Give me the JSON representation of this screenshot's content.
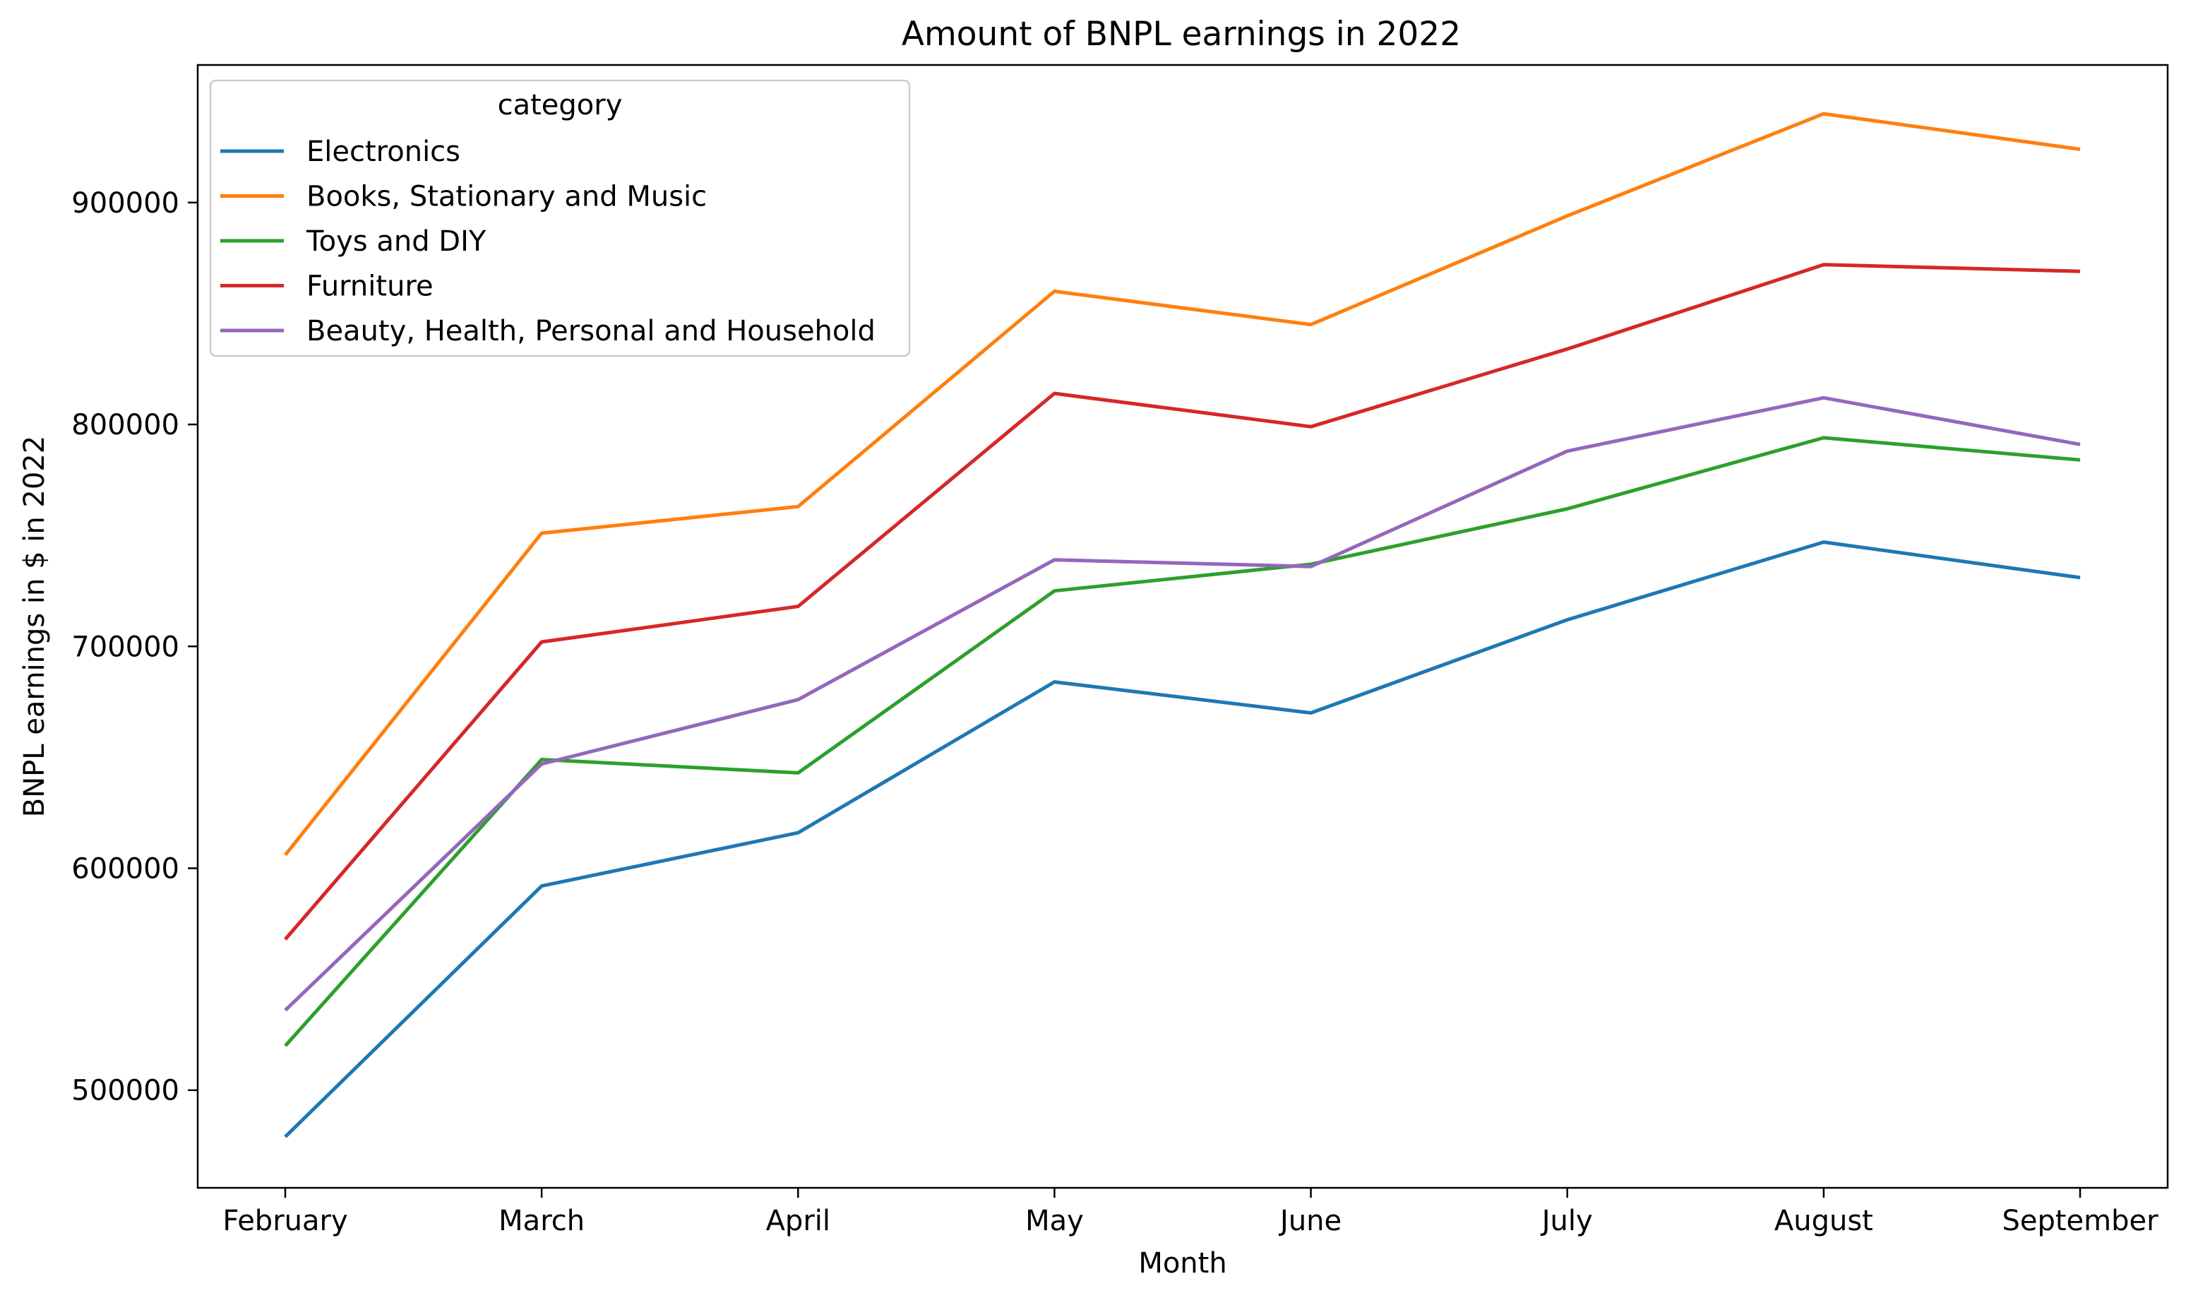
{
  "chart_data": {
    "type": "line",
    "title": "Amount of BNPL earnings in 2022",
    "xlabel": "Month",
    "ylabel": "BNPL earnings in $ in 2022",
    "categories": [
      "February",
      "March",
      "April",
      "May",
      "June",
      "July",
      "August",
      "September"
    ],
    "yticks": [
      500000,
      600000,
      700000,
      800000,
      900000
    ],
    "ylim": [
      456000,
      962000
    ],
    "grid": false,
    "legend": {
      "title": "category",
      "placement": "top-left"
    },
    "series": [
      {
        "name": "Electronics",
        "color": "#1f77b4",
        "values": [
          479000,
          592000,
          616000,
          684000,
          670000,
          712000,
          747000,
          731000
        ]
      },
      {
        "name": "Books, Stationary and Music",
        "color": "#ff7f0e",
        "values": [
          606000,
          751000,
          763000,
          860000,
          845000,
          894000,
          940000,
          924000
        ]
      },
      {
        "name": "Toys and DIY",
        "color": "#2ca02c",
        "values": [
          520000,
          649000,
          643000,
          725000,
          737000,
          762000,
          794000,
          784000
        ]
      },
      {
        "name": "Furniture",
        "color": "#d62728",
        "values": [
          568000,
          702000,
          718000,
          814000,
          799000,
          834000,
          872000,
          869000
        ]
      },
      {
        "name": "Beauty, Health, Personal and Household",
        "color": "#9467bd",
        "values": [
          536000,
          647000,
          676000,
          739000,
          736000,
          788000,
          812000,
          791000
        ]
      }
    ]
  }
}
